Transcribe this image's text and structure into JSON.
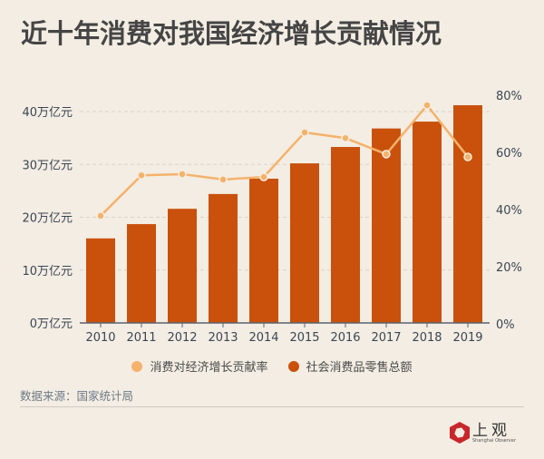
{
  "title": "近十年消费对我国经济增长贡献情况",
  "source": "数据来源：国家统计局",
  "logo": {
    "cn": "上观",
    "en": "Shanghai Observer",
    "color": "#c8262a"
  },
  "colors": {
    "bar": "#c9510c",
    "line": "#f5b26b",
    "background": "#f3ede3",
    "grid": "#d9d3c9"
  },
  "chart_data": {
    "type": "bar+line",
    "title": "近十年消费对我国经济增长贡献情况",
    "categories": [
      "2010",
      "2011",
      "2012",
      "2013",
      "2014",
      "2015",
      "2016",
      "2017",
      "2018",
      "2019"
    ],
    "series": [
      {
        "name": "社会消费品零售总额",
        "type": "bar",
        "axis": "left",
        "unit": "万亿元",
        "values": [
          16.0,
          18.7,
          21.6,
          24.4,
          27.3,
          30.2,
          33.3,
          36.8,
          38.1,
          41.2
        ]
      },
      {
        "name": "消费对经济增长贡献率",
        "type": "line",
        "axis": "right",
        "unit": "%",
        "values": [
          37.8,
          52.0,
          52.4,
          50.5,
          51.4,
          67.0,
          65.0,
          59.4,
          76.5,
          58.4
        ]
      }
    ],
    "y_left": {
      "range": [
        0,
        40
      ],
      "ticks": [
        0,
        10,
        20,
        30,
        40
      ],
      "tick_labels": [
        "0万亿元",
        "10万亿元",
        "20万亿元",
        "30万亿元",
        "40万亿元"
      ]
    },
    "y_right": {
      "range": [
        0,
        80
      ],
      "ticks": [
        0,
        20,
        40,
        60,
        80
      ],
      "tick_labels": [
        "0%",
        "20%",
        "40%",
        "60%",
        "80%"
      ]
    },
    "grid": true,
    "legend": {
      "position": "bottom",
      "entries": [
        "消费对经济增长贡献率",
        "社会消费品零售总额"
      ]
    }
  }
}
